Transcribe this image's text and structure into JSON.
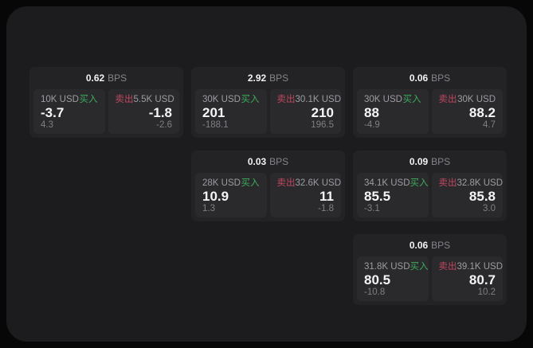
{
  "page": {
    "buy_label": "买入",
    "sell_label": "卖出",
    "bps_unit": "BPS",
    "colors": {
      "outer_bg": "#070708",
      "panel_bg": "#1c1c1e",
      "card_bg": "#232325",
      "subpanel_bg": "#2a2a2c",
      "buy_green": "#3dab5c",
      "sell_red": "#c04760",
      "value_white": "#f5f5f6",
      "muted_gray": "#9d9da2"
    }
  },
  "cards": [
    {
      "bps": "0.62",
      "buy": {
        "amount": "10K USD",
        "value": "-3.7",
        "delta": "4.3"
      },
      "sell": {
        "amount": "5.5K USD",
        "value": "-1.8",
        "delta": "-2.6"
      }
    },
    {
      "bps": "2.92",
      "buy": {
        "amount": "30K USD",
        "value": "201",
        "delta": "-188.1"
      },
      "sell": {
        "amount": "30.1K USD",
        "value": "210",
        "delta": "196.5"
      }
    },
    {
      "bps": "0.06",
      "buy": {
        "amount": "30K USD",
        "value": "88",
        "delta": "-4.9"
      },
      "sell": {
        "amount": "30K USD",
        "value": "88.2",
        "delta": "4.7"
      }
    },
    {
      "bps": "0.03",
      "buy": {
        "amount": "28K USD",
        "value": "10.9",
        "delta": "1.3"
      },
      "sell": {
        "amount": "32.6K USD",
        "value": "11",
        "delta": "-1.8"
      }
    },
    {
      "bps": "0.09",
      "buy": {
        "amount": "34.1K USD",
        "value": "85.5",
        "delta": "-3.1"
      },
      "sell": {
        "amount": "32.8K USD",
        "value": "85.8",
        "delta": "3.0"
      }
    },
    {
      "bps": "0.06",
      "buy": {
        "amount": "31.8K USD",
        "value": "80.5",
        "delta": "-10.8"
      },
      "sell": {
        "amount": "39.1K USD",
        "value": "80.7",
        "delta": "10.2"
      }
    }
  ]
}
